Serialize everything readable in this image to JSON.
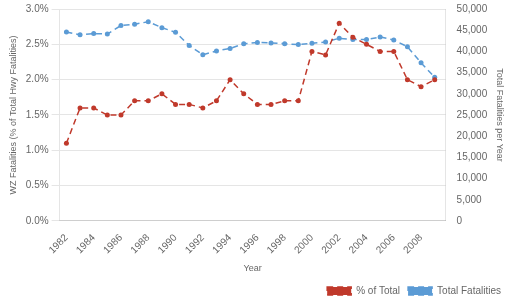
{
  "chart_data": {
    "type": "line",
    "xlabel": "Year",
    "ylabel": "WZ Fatalities (% of Total Hwy Fatalities)",
    "y2label": "Total Fatalities per Year",
    "x": [
      1982,
      1983,
      1984,
      1985,
      1986,
      1987,
      1988,
      1989,
      1990,
      1991,
      1992,
      1993,
      1994,
      1995,
      1996,
      1997,
      1998,
      1999,
      2000,
      2001,
      2002,
      2003,
      2004,
      2005,
      2006,
      2007,
      2008,
      2009
    ],
    "xlim": [
      1981.5,
      2009.8
    ],
    "xticks": [
      1982,
      1984,
      1986,
      1988,
      1990,
      1992,
      1994,
      1996,
      1998,
      2000,
      2002,
      2004,
      2006,
      2008
    ],
    "ylim": [
      0.0,
      0.03
    ],
    "yticks": [
      {
        "value": 0.0,
        "label": "0.0%"
      },
      {
        "value": 0.005,
        "label": "0.5%"
      },
      {
        "value": 0.01,
        "label": "1.0%"
      },
      {
        "value": 0.015,
        "label": "1.5%"
      },
      {
        "value": 0.02,
        "label": "2.0%"
      },
      {
        "value": 0.025,
        "label": "2.5%"
      },
      {
        "value": 0.03,
        "label": "3.0%"
      }
    ],
    "y2lim": [
      0,
      50000
    ],
    "y2ticks": [
      0,
      {
        "value": 5000,
        "label": "5,000"
      },
      {
        "value": 10000,
        "label": "10,000"
      },
      {
        "value": 15000,
        "label": "15,000"
      },
      {
        "value": 20000,
        "label": "20,000"
      },
      {
        "value": 25000,
        "label": "25,000"
      },
      {
        "value": 30000,
        "label": "30,000"
      },
      {
        "value": 35000,
        "label": "35,000"
      },
      {
        "value": 40000,
        "label": "40,000"
      },
      {
        "value": 45000,
        "label": "45,000"
      },
      {
        "value": 50000,
        "label": "50,000"
      }
    ],
    "series": [
      {
        "name": "% of Total",
        "color": "#c0392b",
        "line_style": "dashed",
        "marker": "circle",
        "values": [
          0.011,
          0.016,
          0.016,
          0.015,
          0.015,
          0.017,
          0.017,
          0.018,
          0.0165,
          0.0165,
          0.016,
          0.017,
          0.02,
          0.018,
          0.0165,
          0.0165,
          0.017,
          0.017,
          0.024,
          0.0235,
          0.028,
          0.026,
          0.025,
          0.024,
          0.024,
          0.02,
          0.019,
          0.02
        ]
      },
      {
        "name": "Total Fatalities",
        "color": "#5b9bd5",
        "line_style": "dashed",
        "marker": "circle",
        "axis": "y2",
        "values": [
          44600,
          43900,
          44200,
          44100,
          46100,
          46400,
          47000,
          45600,
          44500,
          41400,
          39200,
          40100,
          40700,
          41800,
          42100,
          42000,
          41800,
          41600,
          41900,
          42200,
          43100,
          42800,
          42800,
          43400,
          42700,
          41100,
          37300,
          33900
        ]
      }
    ],
    "grid": true,
    "legend": "lower right"
  }
}
